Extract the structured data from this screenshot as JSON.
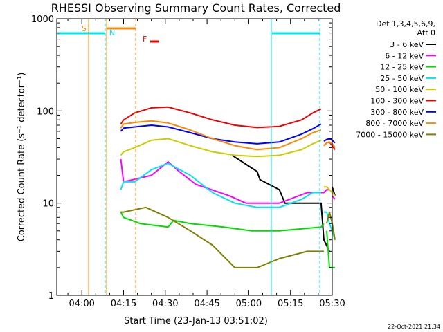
{
  "chart_data": {
    "type": "line",
    "title": "RHESSI Observing Summary Count Rates, Corrected",
    "xlabel": "Start Time (23-Jan-13 03:51:02)",
    "ylabel": "Corrected Count Rate (s⁻¹ detector⁻¹)",
    "xlim": [
      "03:51",
      "05:30"
    ],
    "ylim": [
      1,
      1000
    ],
    "yscale": "log",
    "x_ticks": [
      "04:00",
      "04:15",
      "04:30",
      "04:45",
      "05:00",
      "05:15",
      "05:30"
    ],
    "y_ticks": [
      "1",
      "10",
      "100",
      "1000"
    ],
    "legend": {
      "placement": "right",
      "header": [
        "Det 1,3,4,5,6,9,",
        "Att 0"
      ],
      "entries": [
        {
          "label": "3 - 6 keV",
          "color": "#000000"
        },
        {
          "label": "6 - 12 keV",
          "color": "#ff00ff"
        },
        {
          "label": "12 - 25 keV",
          "color": "#00dd00"
        },
        {
          "label": "25 - 50 keV",
          "color": "#00e5ee"
        },
        {
          "label": "50 - 100 keV",
          "color": "#cccc00"
        },
        {
          "label": "100 - 300 keV",
          "color": "#ee0000"
        },
        {
          "label": "300 - 800 keV",
          "color": "#0000ff"
        },
        {
          "label": "800 - 7000 keV",
          "color": "#ff8800"
        },
        {
          "label": "7000 - 15000 keV",
          "color": "#808000"
        }
      ]
    },
    "flags": [
      {
        "label": "S",
        "color": "#ff8800"
      },
      {
        "label": "N",
        "color": "#00e5ee"
      },
      {
        "label": "F",
        "color": "#ee0000"
      }
    ],
    "series": [
      {
        "name": "3 - 6 keV",
        "color": "#000000",
        "x": [
          63,
          72,
          73,
          80,
          82,
          95,
          96,
          98,
          99,
          100
        ],
        "y": [
          33,
          22,
          18,
          14,
          10,
          10,
          4,
          3,
          15,
          12
        ],
        "segments": [
          [
            0,
            7
          ],
          [
            8,
            9
          ]
        ]
      },
      {
        "name": "6 - 12 keV",
        "color": "#ff00ff",
        "x": [
          23,
          24,
          34,
          40,
          44,
          50,
          62,
          68,
          80,
          90,
          96,
          97,
          98,
          99,
          100
        ],
        "y": [
          30,
          17,
          20,
          28,
          22,
          16,
          12,
          10,
          10,
          13,
          13,
          14,
          14,
          12,
          11
        ],
        "segments": [
          [
            0,
            12
          ],
          [
            13,
            14
          ]
        ]
      },
      {
        "name": "12 - 25 keV",
        "color": "#00dd00",
        "x": [
          23,
          24,
          30,
          40,
          42,
          48,
          60,
          70,
          80,
          95,
          96,
          97,
          98,
          99,
          100
        ],
        "y": [
          8,
          7,
          6,
          5.5,
          6.5,
          6,
          5.5,
          5,
          5,
          5.5,
          6,
          5,
          2,
          2,
          2
        ],
        "segments": [
          [
            0,
            10
          ],
          [
            11,
            14
          ]
        ]
      },
      {
        "name": "25 - 50 keV",
        "color": "#00e5ee",
        "x": [
          23,
          24,
          28,
          34,
          40,
          48,
          56,
          64,
          72,
          80,
          88,
          92,
          95,
          96,
          97,
          98,
          99,
          100
        ],
        "y": [
          14,
          17,
          17,
          23,
          27,
          20,
          13,
          10,
          9,
          9,
          11,
          13,
          13,
          8,
          8,
          6,
          5,
          4
        ],
        "segments": [
          [
            0,
            12
          ],
          [
            13,
            17
          ]
        ]
      },
      {
        "name": "50 - 100 keV",
        "color": "#cccc00",
        "x": [
          23,
          24,
          28,
          34,
          40,
          48,
          56,
          64,
          72,
          80,
          88,
          92,
          95,
          96,
          97,
          98,
          99,
          100
        ],
        "y": [
          33,
          36,
          40,
          48,
          50,
          42,
          36,
          33,
          32,
          33,
          38,
          44,
          48,
          15,
          15,
          14,
          13,
          12
        ],
        "segments": [
          [
            0,
            12
          ],
          [
            13,
            17
          ]
        ]
      },
      {
        "name": "100 - 300 keV",
        "color": "#ee0000",
        "x": [
          23,
          24,
          28,
          34,
          40,
          48,
          56,
          64,
          72,
          80,
          88,
          92,
          95,
          96,
          97,
          98,
          99,
          100
        ],
        "y": [
          72,
          80,
          95,
          108,
          110,
          95,
          80,
          70,
          66,
          68,
          80,
          95,
          105,
          42,
          45,
          46,
          42,
          38
        ],
        "segments": [
          [
            0,
            12
          ],
          [
            13,
            17
          ]
        ]
      },
      {
        "name": "300 - 800 keV",
        "color": "#0000ff",
        "x": [
          23,
          24,
          28,
          34,
          40,
          48,
          56,
          64,
          72,
          80,
          88,
          92,
          95,
          96,
          97,
          98,
          99,
          100
        ],
        "y": [
          60,
          65,
          67,
          70,
          67,
          58,
          50,
          46,
          44,
          46,
          56,
          64,
          72,
          47,
          49,
          50,
          48,
          45
        ],
        "segments": [
          [
            0,
            12
          ],
          [
            13,
            17
          ]
        ]
      },
      {
        "name": "800 - 7000 keV",
        "color": "#ff8800",
        "x": [
          23,
          24,
          28,
          34,
          40,
          48,
          56,
          64,
          72,
          80,
          88,
          92,
          95,
          96,
          97,
          98,
          99,
          100
        ],
        "y": [
          65,
          72,
          75,
          78,
          74,
          62,
          50,
          42,
          38,
          40,
          50,
          58,
          62,
          42,
          45,
          46,
          44,
          40
        ],
        "segments": [
          [
            0,
            12
          ],
          [
            13,
            17
          ]
        ]
      },
      {
        "name": "7000 - 15000 keV",
        "color": "#808000",
        "x": [
          23,
          24,
          32,
          40,
          48,
          56,
          64,
          72,
          80,
          90,
          96,
          97,
          98,
          99,
          100
        ],
        "y": [
          8,
          8,
          9,
          7,
          5,
          3.5,
          2,
          2,
          2.5,
          3,
          3,
          6,
          8,
          6,
          4
        ],
        "segments": [
          [
            0,
            10
          ],
          [
            11,
            14
          ]
        ]
      }
    ]
  },
  "footer": {
    "timestamp": "22-Oct-2021 21:34"
  }
}
